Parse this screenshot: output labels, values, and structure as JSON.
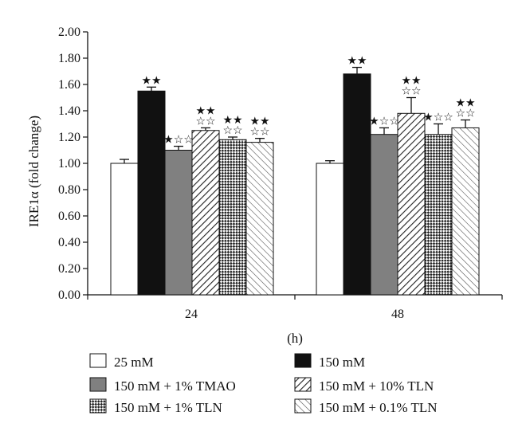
{
  "chart_data": {
    "type": "bar",
    "categories": [
      "24",
      "48"
    ],
    "xlabel": "(h)",
    "ylabel": "IRE1α (fold change)",
    "ylim": [
      0,
      2.0
    ],
    "yticks": [
      "0.00",
      "0.20",
      "0.40",
      "0.60",
      "0.80",
      "1.00",
      "1.20",
      "1.40",
      "1.60",
      "1.80",
      "2.00"
    ],
    "grid": false,
    "legend_position": "bottom",
    "series": [
      {
        "name": "25 mM",
        "values": [
          1.0,
          1.0
        ],
        "errors": [
          0.03,
          0.02
        ],
        "fill": "white",
        "annotations": [
          "",
          ""
        ]
      },
      {
        "name": "150 mM",
        "values": [
          1.55,
          1.68
        ],
        "errors": [
          0.03,
          0.05
        ],
        "fill": "black",
        "annotations": [
          "★★",
          "★★"
        ]
      },
      {
        "name": "150 mM + 1% TMAO",
        "values": [
          1.1,
          1.22
        ],
        "errors": [
          0.03,
          0.05
        ],
        "fill": "gray",
        "annotations": [
          "★☆☆",
          "★☆☆"
        ]
      },
      {
        "name": "150 mM + 10% TLN",
        "values": [
          1.25,
          1.38
        ],
        "errors": [
          0.02,
          0.12
        ],
        "fill": "diagonal-back",
        "annotations": [
          "★★|☆☆",
          "★★|☆☆"
        ]
      },
      {
        "name": "150 mM + 1% TLN",
        "values": [
          1.18,
          1.22
        ],
        "errors": [
          0.02,
          0.08
        ],
        "fill": "checker",
        "annotations": [
          "★★|☆☆",
          "★☆☆"
        ]
      },
      {
        "name": "150 mM + 0.1% TLN",
        "values": [
          1.16,
          1.27
        ],
        "errors": [
          0.03,
          0.06
        ],
        "fill": "diagonal-fwd",
        "annotations": [
          "★★|☆☆",
          "★★|☆☆"
        ]
      }
    ],
    "colors": {
      "gray": "#808080",
      "black": "#111111",
      "white": "#ffffff",
      "pattern": "#222222"
    }
  }
}
